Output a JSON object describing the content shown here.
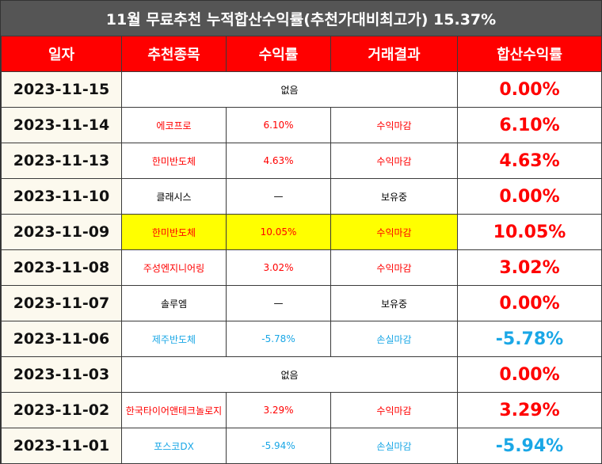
{
  "title": "11월 무료추천 누적합산수익률(추천가대비최고가) 15.37%",
  "headers": [
    "일자",
    "추천종목",
    "수익률",
    "거래결과",
    "합산수익률"
  ],
  "colors": {
    "header_bg": "#ff0000",
    "title_bg": "#555555",
    "gain": "#ff0000",
    "loss": "#1aa7e6",
    "highlight": "#ffff00"
  },
  "rows": [
    {
      "date": "2023-11-15",
      "none": "없음",
      "total": "0.00%",
      "color": "red"
    },
    {
      "date": "2023-11-14",
      "stock": "에코프로",
      "rate": "6.10%",
      "result": "수익마감",
      "total": "6.10%",
      "color": "red"
    },
    {
      "date": "2023-11-13",
      "stock": "한미반도체",
      "rate": "4.63%",
      "result": "수익마감",
      "total": "4.63%",
      "color": "red"
    },
    {
      "date": "2023-11-10",
      "stock": "클래시스",
      "rate": "—",
      "result": "보유중",
      "total": "0.00%",
      "color": "black",
      "total_color": "red"
    },
    {
      "date": "2023-11-09",
      "stock": "한미반도체",
      "rate": "10.05%",
      "result": "수익마감",
      "total": "10.05%",
      "color": "red",
      "highlight": true
    },
    {
      "date": "2023-11-08",
      "stock": "주성엔지니어링",
      "rate": "3.02%",
      "result": "수익마감",
      "total": "3.02%",
      "color": "red"
    },
    {
      "date": "2023-11-07",
      "stock": "솔루엠",
      "rate": "—",
      "result": "보유중",
      "total": "0.00%",
      "color": "black",
      "total_color": "red"
    },
    {
      "date": "2023-11-06",
      "stock": "제주반도체",
      "rate": "-5.78%",
      "result": "손실마감",
      "total": "-5.78%",
      "color": "blue"
    },
    {
      "date": "2023-11-03",
      "none": "없음",
      "total": "0.00%",
      "color": "red"
    },
    {
      "date": "2023-11-02",
      "stock": "한국타이어앤테크놀로지",
      "rate": "3.29%",
      "result": "수익마감",
      "total": "3.29%",
      "color": "red"
    },
    {
      "date": "2023-11-01",
      "stock": "포스코DX",
      "rate": "-5.94%",
      "result": "손실마감",
      "total": "-5.94%",
      "color": "blue"
    }
  ]
}
